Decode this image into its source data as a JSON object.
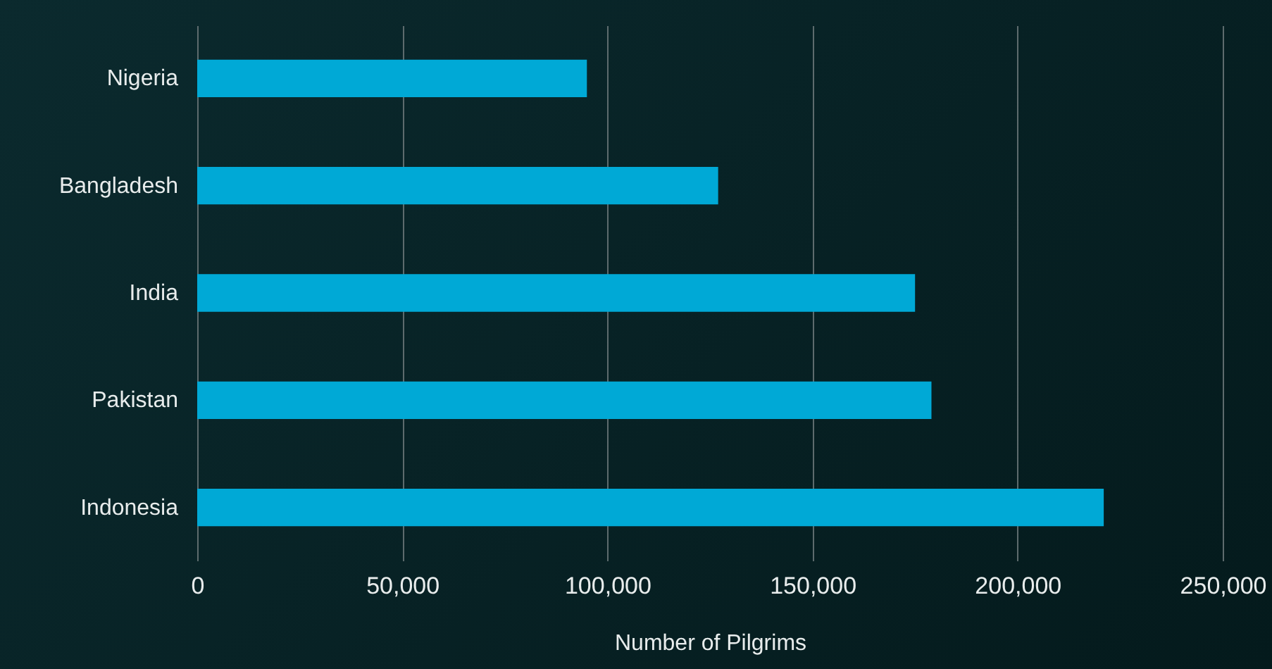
{
  "chart_data": {
    "type": "bar",
    "orientation": "horizontal",
    "xlabel": "Number of Pilgrims",
    "categories": [
      "Nigeria",
      "Bangladesh",
      "India",
      "Pakistan",
      "Indonesia"
    ],
    "values": [
      95000,
      127000,
      175000,
      179000,
      221000
    ],
    "color": "#00a9d6",
    "xlim": [
      0,
      250000
    ],
    "xticks": [
      0,
      {
        "value": 50000,
        "label": "50,000"
      },
      {
        "value": 100000,
        "label": "100,000"
      },
      {
        "value": 150000,
        "label": "150,000"
      },
      {
        "value": 200000,
        "label": "200,000"
      },
      {
        "value": 250000,
        "label": "250,000"
      }
    ],
    "grid": "x"
  }
}
